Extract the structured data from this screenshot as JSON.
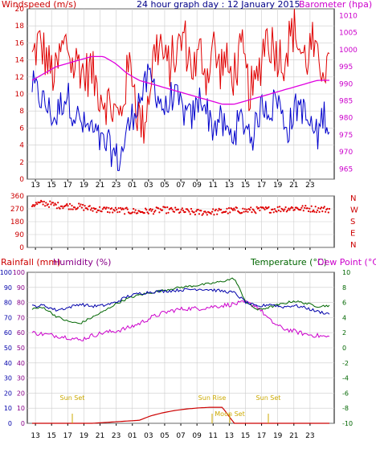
{
  "title": "24 hour graph day : 12 January 2015",
  "colors": {
    "wind": "#e00000",
    "gust": "#e00000",
    "speed": "#0000cc",
    "baro": "#e000e0",
    "dir": "#e00000",
    "rain": "#cc0000",
    "humidity": "#cc00cc",
    "temp": "#0000aa",
    "dew": "#006600",
    "sun": "#ccaa00",
    "grid": "#cccccc",
    "frame": "#000000"
  },
  "x_ticks": [
    "13",
    "15",
    "17",
    "19",
    "21",
    "23",
    "01",
    "03",
    "05",
    "07",
    "09",
    "11",
    "13",
    "15",
    "17",
    "19",
    "21",
    "23"
  ],
  "chart_data": [
    {
      "type": "line",
      "name": "wind-baro",
      "left_label": "Windspeed (m/s)",
      "right_label": "Barometer (hpa)",
      "left_ticks": [
        "0",
        "2",
        "4",
        "6",
        "8",
        "10",
        "12",
        "14",
        "16",
        "18",
        "20"
      ],
      "right_ticks": [
        "965",
        "970",
        "975",
        "980",
        "985",
        "990",
        "995",
        "1000",
        "1005",
        "1010"
      ],
      "ylim_left": [
        0,
        20
      ],
      "ylim_right": [
        962,
        1012
      ],
      "gust_anchors": [
        14,
        16,
        15,
        13,
        12,
        15,
        16,
        13,
        14,
        12,
        13,
        11,
        10,
        9,
        8,
        7,
        11,
        14,
        8,
        6,
        10,
        15,
        16,
        13,
        14,
        15,
        17,
        14,
        13,
        15,
        12,
        16,
        13,
        14,
        12,
        13,
        15,
        11,
        10,
        13,
        17,
        16,
        15,
        14,
        16,
        18,
        15,
        14,
        16,
        13,
        14,
        12
      ],
      "speed_anchors": [
        11,
        10,
        9,
        8,
        7,
        9,
        10,
        8,
        7,
        6,
        6,
        5,
        4,
        4,
        3,
        2,
        5,
        7,
        9,
        10,
        12,
        11,
        9,
        8,
        10,
        9,
        8,
        7,
        8,
        10,
        8,
        6,
        7,
        6,
        5,
        6,
        7,
        6,
        5,
        8,
        9,
        8,
        10,
        7,
        6,
        8,
        9,
        7,
        6,
        5,
        8,
        6
      ],
      "baro_anchors": [
        991,
        993,
        995,
        996,
        997,
        998,
        998,
        996,
        993,
        991,
        990,
        989,
        988,
        987,
        986,
        985,
        984,
        984,
        985,
        986,
        987,
        988,
        989,
        990,
        991,
        991
      ]
    },
    {
      "type": "scatter",
      "name": "wind-direction",
      "left_ticks": [
        "0",
        "90",
        "180",
        "270",
        "360"
      ],
      "right_ticks": [
        "N",
        "W",
        "S",
        "E",
        "N"
      ],
      "ylim": [
        0,
        360
      ],
      "dir_anchors": [
        300,
        310,
        295,
        290,
        285,
        270,
        265,
        260,
        255,
        250,
        255,
        262,
        258,
        250,
        245,
        248,
        252,
        260,
        258,
        262,
        265,
        270,
        275,
        272,
        268,
        266
      ]
    },
    {
      "type": "line",
      "name": "rain-humidity-temp",
      "left_label_rain": "Rainfall (mm)",
      "left_label_hum": "Humidity (%)",
      "right_label_temp": "Temperature (°C)",
      "right_label_dew": "Dew Point (°C)",
      "rain_ticks": [
        "0",
        "10",
        "20",
        "30",
        "40",
        "50",
        "60",
        "70",
        "80",
        "90",
        "100"
      ],
      "hum_ticks": [
        "0",
        "10",
        "20",
        "30",
        "40",
        "50",
        "60",
        "70",
        "80",
        "90",
        "100"
      ],
      "temp_ticks": [
        "-10",
        "-8",
        "-6",
        "-4",
        "-2",
        "0",
        "2",
        "4",
        "6",
        "8",
        "10"
      ],
      "hum_anchors": [
        60,
        59,
        58,
        57,
        55,
        58,
        60,
        61,
        63,
        66,
        70,
        73,
        75,
        76,
        76,
        77,
        78,
        79,
        80,
        77,
        68,
        63,
        61,
        59,
        58,
        57
      ],
      "temp_anchors": [
        5.5,
        5.6,
        5.0,
        5.3,
        5.8,
        5.5,
        5.6,
        6.0,
        6.8,
        7.2,
        7.4,
        7.5,
        7.6,
        7.7,
        7.8,
        7.7,
        7.5,
        7.3,
        6.0,
        5.4,
        5.8,
        5.4,
        5.6,
        5.3,
        4.8,
        4.5
      ],
      "dew_anchors": [
        5.2,
        5.3,
        4.2,
        3.5,
        3.2,
        4.0,
        4.8,
        5.8,
        6.5,
        7.0,
        7.3,
        7.6,
        7.9,
        8.1,
        8.3,
        8.5,
        8.8,
        9.2,
        6.0,
        5.0,
        5.4,
        5.8,
        6.2,
        5.9,
        5.5,
        5.6
      ],
      "rain_anchors": [
        0,
        0,
        0,
        0,
        0,
        0,
        0.5,
        1,
        1.5,
        2,
        5,
        7,
        8.5,
        9.5,
        10.2,
        10.6,
        10.6,
        0,
        0,
        0,
        0,
        0,
        0,
        0,
        0,
        0
      ],
      "events": [
        {
          "label": "Sun Set"
        },
        {
          "label": "Sun Rise"
        },
        {
          "label": "Moon Set"
        },
        {
          "label": "Sun Set"
        }
      ]
    }
  ]
}
